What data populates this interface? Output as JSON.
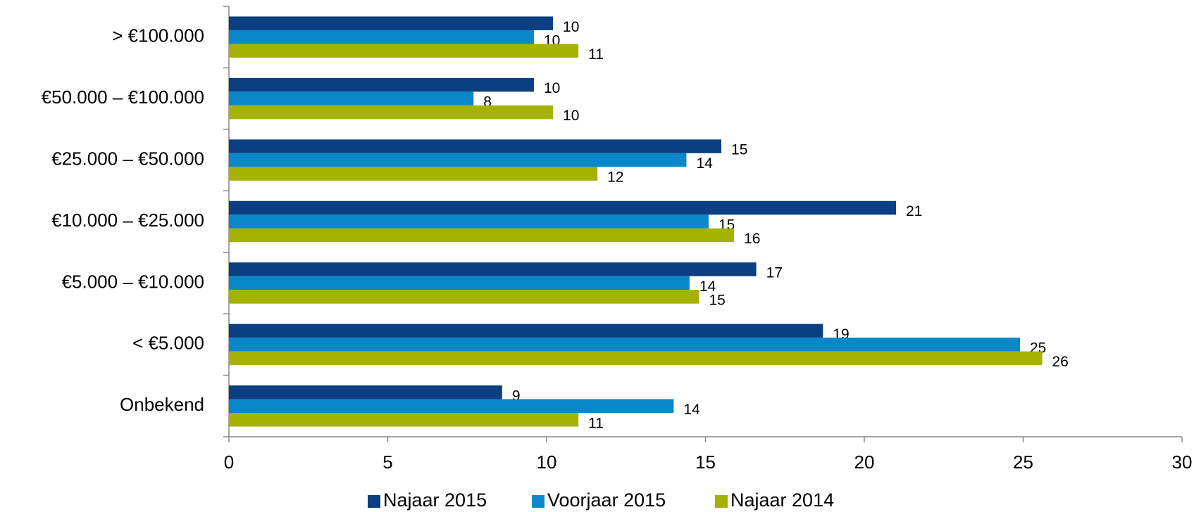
{
  "chart_data": {
    "type": "barh",
    "categories": [
      "> €100.000",
      "€50.000 – €100.000",
      "€25.000 – €50.000",
      "€10.000 – €25.000",
      "€5.000 – €10.000",
      "< €5.000",
      "Onbekend"
    ],
    "series": [
      {
        "name": "Najaar 2015",
        "color": "#0b3f82",
        "values": [
          10.2,
          9.6,
          15.5,
          21.0,
          16.6,
          18.7,
          8.6
        ],
        "value_labels": [
          "10",
          "10",
          "15",
          "21",
          "17",
          "19",
          "9"
        ]
      },
      {
        "name": "Voorjaar 2015",
        "color": "#0a87c9",
        "values": [
          9.6,
          7.7,
          14.4,
          15.1,
          14.5,
          24.9,
          14.0
        ],
        "value_labels": [
          "10",
          "8",
          "14",
          "15",
          "14",
          "25",
          "14"
        ]
      },
      {
        "name": "Najaar 2014",
        "color": "#a3b300",
        "values": [
          11.0,
          10.2,
          11.6,
          15.9,
          14.8,
          25.6,
          11.0
        ],
        "value_labels": [
          "11",
          "10",
          "12",
          "16",
          "15",
          "26",
          "11"
        ]
      }
    ],
    "xlim": [
      0,
      30
    ],
    "xticks": [
      0,
      5,
      10,
      15,
      20,
      25,
      30
    ],
    "legend": "bottom"
  }
}
